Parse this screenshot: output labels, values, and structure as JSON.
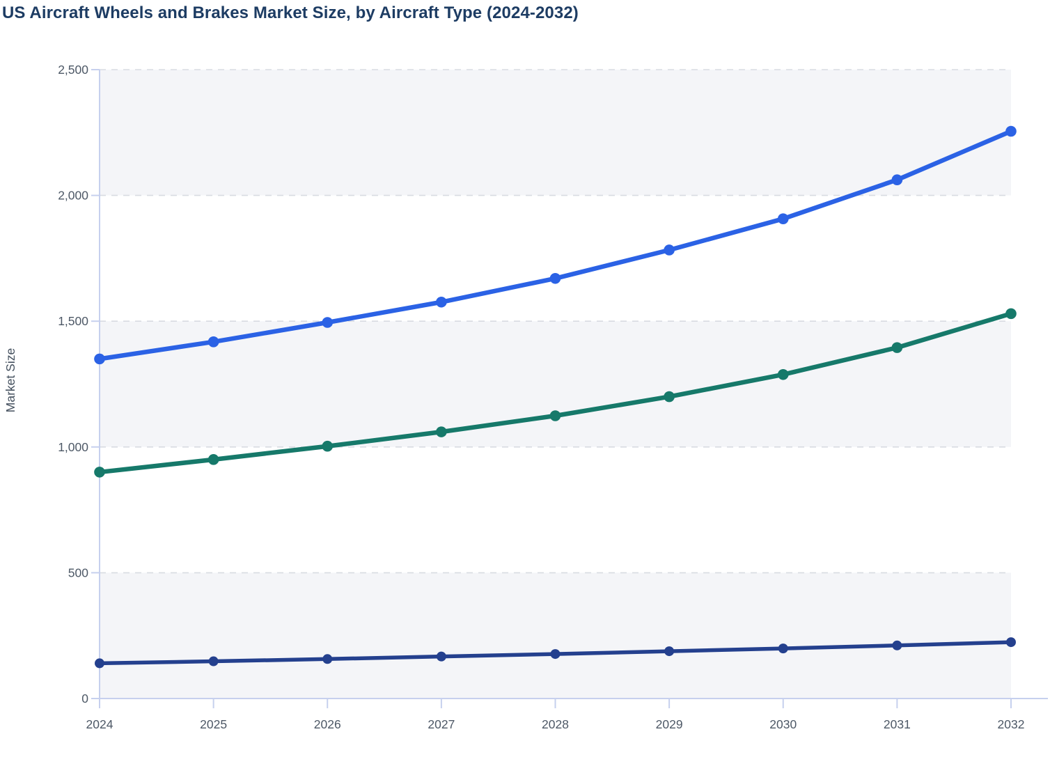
{
  "page": {
    "title": "US Aircraft Wheels and Brakes Market Size, by Aircraft Type (2024-2032)"
  },
  "chart_data": {
    "type": "line",
    "title": "US Aircraft Wheels and Brakes Market Size, by Aircraft Type (2024-2032)",
    "xlabel": "",
    "ylabel": "Market Size",
    "categories": [
      "2024",
      "2025",
      "2026",
      "2027",
      "2028",
      "2029",
      "2030",
      "2031",
      "2032"
    ],
    "ylim": [
      0,
      2500
    ],
    "y_ticks": [
      0,
      500,
      1000,
      1500,
      2000,
      2500
    ],
    "y_tick_labels": [
      "0",
      "500",
      "1,000",
      "1,500",
      "2,000",
      "2,500"
    ],
    "grid": "horizontal-dashed",
    "legend": "none",
    "plot_background": "alternating-horizontal-bands",
    "series": [
      {
        "name": "series-1-blue",
        "color": "#2b62e5",
        "values": [
          1350,
          1418,
          1495,
          1576,
          1670,
          1783,
          1907,
          2062,
          2255
        ]
      },
      {
        "name": "series-2-teal",
        "color": "#16796a",
        "values": [
          900,
          950,
          1003,
          1060,
          1124,
          1200,
          1288,
          1395,
          1530
        ]
      },
      {
        "name": "series-3-navy",
        "color": "#24408e",
        "values": [
          140,
          148,
          157,
          167,
          177,
          188,
          199,
          211,
          224
        ]
      }
    ],
    "style": {
      "title_color": "#1d3c63",
      "axis_label_color": "#44505e",
      "tick_label_color": "#4d5866",
      "axis_line_color": "#c6d0ee",
      "grid_line_color": "#d8dbe2",
      "band_fill": "#f4f5f8",
      "background": "#ffffff"
    }
  }
}
